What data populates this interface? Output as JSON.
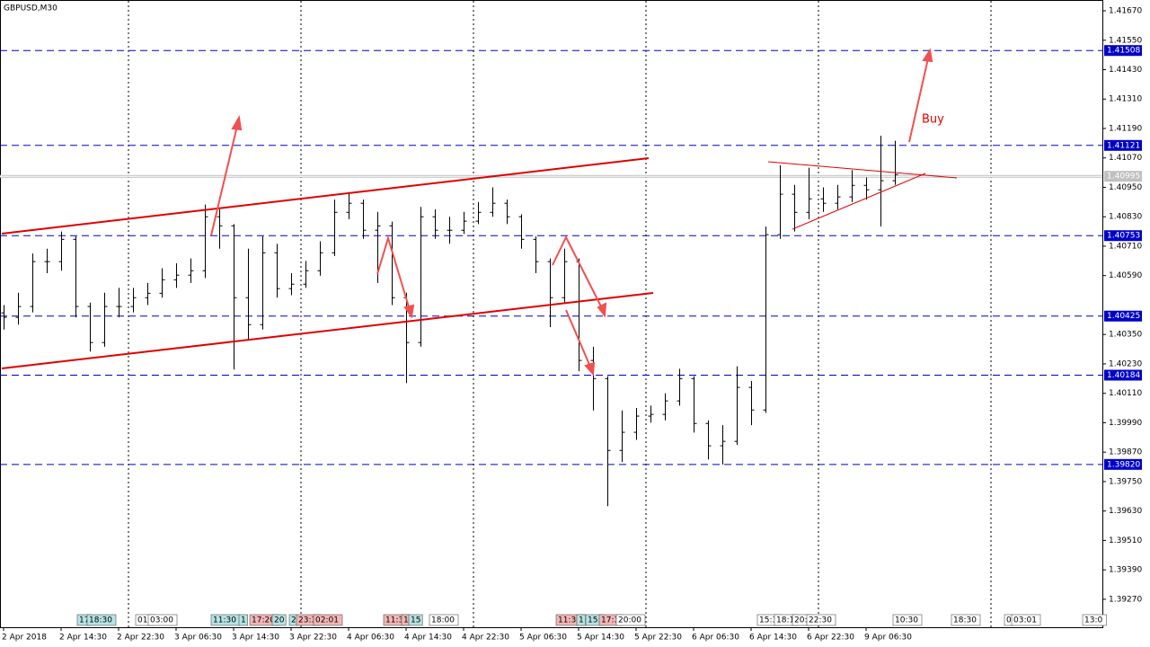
{
  "chart_data": {
    "type": "ohlc",
    "title": "GBPUSD,M30",
    "categories": [
      "2 Apr 2018",
      null,
      null,
      null,
      "2 Apr 14:30",
      null,
      null,
      null,
      "2 Apr 22:30",
      null,
      null,
      null,
      "3 Apr 06:30",
      null,
      null,
      null,
      "3 Apr 14:30",
      null,
      null,
      null,
      "3 Apr 22:30",
      null,
      null,
      null,
      "4 Apr 06:30",
      null,
      null,
      null,
      "4 Apr 14:30",
      null,
      null,
      null,
      "4 Apr 22:30",
      null,
      null,
      null,
      "5 Apr 06:30",
      null,
      null,
      null,
      "5 Apr 14:30",
      null,
      null,
      null,
      "5 Apr 22:30",
      null,
      null,
      null,
      "6 Apr 06:30",
      null,
      null,
      null,
      "6 Apr 14:30",
      null,
      null,
      null,
      "6 Apr 22:30",
      null,
      null,
      null,
      "9 Apr 06:30",
      null,
      null
    ],
    "open": [
      1.40438,
      1.4042,
      1.40464,
      1.40647,
      1.40647,
      1.40738,
      1.40464,
      1.40317,
      1.40464,
      1.40464,
      1.405,
      1.40518,
      1.40573,
      1.40592,
      1.4061,
      1.4083,
      1.40793,
      1.405,
      1.4039,
      1.40683,
      1.40537,
      1.40555,
      1.4061,
      1.40683,
      1.40848,
      1.40885,
      1.40775,
      1.40793,
      1.405,
      1.40317,
      1.4083,
      1.40775,
      1.40775,
      1.40812,
      1.40848,
      1.40885,
      1.4083,
      1.40738,
      1.40647,
      1.405,
      1.40647,
      1.40244,
      1.4017,
      1.39877,
      1.39951,
      1.40017,
      1.40024,
      1.40079,
      1.4017,
      1.39987,
      1.39896,
      1.39914,
      1.40134,
      1.40042,
      1.40757,
      1.40922,
      1.40848,
      1.40903,
      1.40885,
      1.40911,
      1.40958,
      1.4094,
      1.40977
    ],
    "high": [
      1.4047,
      1.4052,
      1.4068,
      1.407,
      1.4077,
      1.4075,
      1.4048,
      1.4052,
      1.4054,
      1.4054,
      1.4056,
      1.4062,
      1.4064,
      1.4066,
      1.4088,
      1.4086,
      1.408,
      1.407,
      1.4075,
      1.4072,
      1.406,
      1.4065,
      1.4073,
      1.409,
      1.4093,
      1.409,
      1.4085,
      1.4081,
      1.4052,
      1.4087,
      1.4086,
      1.4083,
      1.4085,
      1.4089,
      1.4095,
      1.409,
      1.4084,
      1.4075,
      1.4066,
      1.407,
      1.4066,
      1.403,
      1.4018,
      1.4004,
      1.4005,
      1.4006,
      1.4011,
      1.4021,
      1.4018,
      1.4,
      1.3998,
      1.4022,
      1.4016,
      1.4079,
      1.4104,
      1.4096,
      1.4103,
      1.4095,
      1.4096,
      1.4102,
      1.4099,
      1.4116,
      1.4114
    ],
    "low": [
      1.4037,
      1.4039,
      1.4044,
      1.406,
      1.4061,
      1.4042,
      1.4028,
      1.403,
      1.4042,
      1.4044,
      1.4047,
      1.405,
      1.4054,
      1.4056,
      1.4058,
      1.407,
      1.40207,
      1.4033,
      1.4037,
      1.405,
      1.4051,
      1.4054,
      1.4059,
      1.4067,
      1.4082,
      1.4074,
      1.4056,
      1.4047,
      1.40152,
      1.403,
      1.4074,
      1.4072,
      1.4076,
      1.408,
      1.4083,
      1.408,
      1.407,
      1.406,
      1.4038,
      1.4048,
      1.402,
      1.4004,
      1.3965,
      1.3983,
      1.3992,
      1.3999,
      1.4,
      1.4006,
      1.3995,
      1.3984,
      1.3982,
      1.399,
      1.3998,
      1.4003,
      1.4074,
      1.4077,
      1.4082,
      1.4085,
      1.4086,
      1.4089,
      1.409,
      1.4079,
      1.4096
    ],
    "close": [
      1.4042,
      1.40464,
      1.40647,
      1.40647,
      1.40738,
      1.40464,
      1.40317,
      1.40464,
      1.40464,
      1.405,
      1.40518,
      1.40573,
      1.40592,
      1.4061,
      1.4083,
      1.40793,
      1.405,
      1.4039,
      1.40683,
      1.40537,
      1.40555,
      1.4061,
      1.40683,
      1.40848,
      1.40885,
      1.40775,
      1.40793,
      1.405,
      1.40317,
      1.4083,
      1.40775,
      1.40775,
      1.40812,
      1.40848,
      1.40885,
      1.4083,
      1.40738,
      1.40647,
      1.405,
      1.40647,
      1.40244,
      1.4017,
      1.39877,
      1.39951,
      1.40017,
      1.40024,
      1.40079,
      1.4017,
      1.39987,
      1.39896,
      1.39914,
      1.40134,
      1.40042,
      1.40757,
      1.40922,
      1.40848,
      1.40903,
      1.40885,
      1.40911,
      1.40958,
      1.4094,
      1.40977,
      1.41002
    ],
    "color": "#000000",
    "ylim": [
      1.39156,
      1.41714
    ],
    "yticks": [
      {
        "value": 1.4167,
        "label": "1.41670"
      },
      {
        "value": 1.4155,
        "label": "1.41550"
      },
      {
        "value": 1.4143,
        "label": "1.41430"
      },
      {
        "value": 1.4131,
        "label": "1.41310"
      },
      {
        "value": 1.4119,
        "label": "1.41190"
      },
      {
        "value": 1.4107,
        "label": "1.41070"
      },
      {
        "value": 1.4095,
        "label": "1.40950"
      },
      {
        "value": 1.4083,
        "label": "1.40830"
      },
      {
        "value": 1.4071,
        "label": "1.40710"
      },
      {
        "value": 1.4059,
        "label": "1.40590"
      },
      {
        "value": 1.4035,
        "label": "1.40350"
      },
      {
        "value": 1.4023,
        "label": "1.40230"
      },
      {
        "value": 1.4011,
        "label": "1.40110"
      },
      {
        "value": 1.3999,
        "label": "1.39990"
      },
      {
        "value": 1.3987,
        "label": "1.39870"
      },
      {
        "value": 1.3975,
        "label": "1.39750"
      },
      {
        "value": 1.3963,
        "label": "1.39630"
      },
      {
        "value": 1.3951,
        "label": "1.39510"
      },
      {
        "value": 1.3939,
        "label": "1.39390"
      },
      {
        "value": 1.3927,
        "label": "1.39270"
      }
    ],
    "levels": [
      1.41508,
      1.41121,
      1.40753,
      1.40425,
      1.40184,
      {
        "value": 1.3982,
        "label": "1.39820"
      }
    ],
    "level_color": "#0000c8",
    "bid": 1.40995,
    "annotation": "Buy",
    "time_tags": [
      {
        "text": "17",
        "color": "#b6e3e3"
      },
      {
        "text": "18:30",
        "color": "#b6e3e3"
      },
      {
        "text": "01:",
        "color": "#ffffff"
      },
      {
        "text": "03:00",
        "color": "#ffffff"
      },
      {
        "text": "11:30",
        "color": "#b6e3e3"
      },
      {
        "text": "1",
        "color": "#b6e3e3"
      },
      {
        "text": "17:20",
        "color": "#f4b6b6"
      },
      {
        "text": "20",
        "color": "#b6e3e3"
      },
      {
        "text": "2",
        "color": "#b6e3e3"
      },
      {
        "text": "23:3",
        "color": "#f4b6b6"
      },
      {
        "text": "02:01",
        "color": "#f4b6b6"
      },
      {
        "text": "11:3",
        "color": "#f4b6b6"
      },
      {
        "text": "1",
        "color": "#f4b6b6"
      },
      {
        "text": "15",
        "color": "#b6e3e3"
      },
      {
        "text": "18:00",
        "color": "#ffffff"
      },
      {
        "text": "11:30",
        "color": "#f4b6b6"
      },
      {
        "text": "1",
        "color": "#b6e3e3"
      },
      {
        "text": "15:",
        "color": "#b6e3e3"
      },
      {
        "text": "17:3",
        "color": "#f4b6b6"
      },
      {
        "text": "20:00",
        "color": "#ffffff"
      },
      {
        "text": "15:3",
        "color": "#ffffff"
      },
      {
        "text": "18:1",
        "color": "#ffffff"
      },
      {
        "text": "20:",
        "color": "#ffffff"
      },
      {
        "text": "22:30",
        "color": "#ffffff"
      },
      {
        "text": "10:30",
        "color": "#ffffff"
      },
      {
        "text": "18:30",
        "color": "#ffffff"
      },
      {
        "text": "0",
        "color": "#ffffff"
      },
      {
        "text": "03:01",
        "color": "#ffffff"
      },
      {
        "text": "13:0",
        "color": "#ffffff"
      }
    ]
  }
}
